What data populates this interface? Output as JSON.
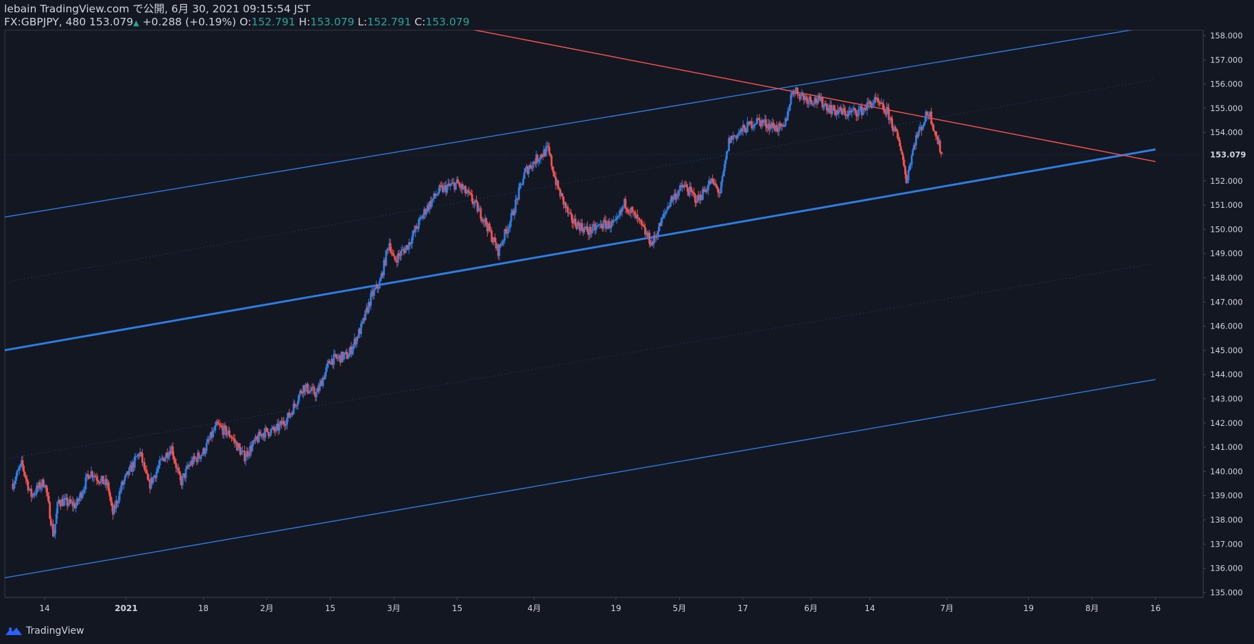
{
  "header": {
    "line1": "lebain TradingView.com で公開, 6月 30, 2021 09:15:54 JST",
    "symbol": "FX:GBPJPY, 480",
    "last": "153.079",
    "up_arrow": "▲",
    "change": "+0.288 (+0.19%)",
    "o_label": "O:",
    "o_value": "152.791",
    "h_label": "H:",
    "h_value": "153.079",
    "l_label": "L:",
    "l_value": "152.791",
    "c_label": "C:",
    "c_value": "153.079"
  },
  "footer": {
    "brand": "TradingView",
    "logo_icon": "tradingview-logo-icon"
  },
  "colors": {
    "background": "#131722",
    "up": "#2f7de1",
    "down": "#ef5350",
    "channel": "#2f7de1",
    "trend": "#ef5350",
    "axis_text": "#d1d4dc",
    "price_label_bg": "#131722"
  },
  "chart_data": {
    "type": "candlestick",
    "symbol": "FX:GBPJPY",
    "interval": "480",
    "y_range": [
      134.9,
      158.3
    ],
    "y_ticks": [
      "135.000",
      "136.000",
      "137.000",
      "138.000",
      "139.000",
      "140.000",
      "141.000",
      "142.000",
      "143.000",
      "144.000",
      "145.000",
      "146.000",
      "147.000",
      "148.000",
      "149.000",
      "150.000",
      "151.000",
      "152.000",
      "153.000",
      "154.000",
      "155.000",
      "156.000",
      "157.000",
      "158.000"
    ],
    "last_price_label": "153.079",
    "x_labels": [
      {
        "label": "14",
        "date": "2020-12-14"
      },
      {
        "label": "2021",
        "date": "2021-01-01"
      },
      {
        "label": "18",
        "date": "2021-01-18"
      },
      {
        "label": "2月",
        "date": "2021-02-01"
      },
      {
        "label": "15",
        "date": "2021-02-15"
      },
      {
        "label": "3月",
        "date": "2021-03-01"
      },
      {
        "label": "15",
        "date": "2021-03-15"
      },
      {
        "label": "4月",
        "date": "2021-04-01"
      },
      {
        "label": "19",
        "date": "2021-04-19"
      },
      {
        "label": "5月",
        "date": "2021-05-03"
      },
      {
        "label": "17",
        "date": "2021-05-17"
      },
      {
        "label": "6月",
        "date": "2021-06-01"
      },
      {
        "label": "14",
        "date": "2021-06-14"
      },
      {
        "label": "7月",
        "date": "2021-07-01"
      },
      {
        "label": "19",
        "date": "2021-07-19"
      },
      {
        "label": "8月",
        "date": "2021-08-02"
      },
      {
        "label": "16",
        "date": "2021-08-16"
      }
    ],
    "price_path": [
      [
        "2020-12-07",
        139.5
      ],
      [
        "2020-12-09",
        140.3
      ],
      [
        "2020-12-11",
        139.0
      ],
      [
        "2020-12-14",
        139.6
      ],
      [
        "2020-12-16",
        137.3
      ],
      [
        "2020-12-17",
        138.8
      ],
      [
        "2020-12-21",
        138.6
      ],
      [
        "2020-12-24",
        140.0
      ],
      [
        "2020-12-28",
        139.4
      ],
      [
        "2020-12-29",
        138.2
      ],
      [
        "2020-12-31",
        139.4
      ],
      [
        "2021-01-04",
        140.8
      ],
      [
        "2021-01-06",
        139.4
      ],
      [
        "2021-01-09",
        140.5
      ],
      [
        "2021-01-11",
        141.0
      ],
      [
        "2021-01-13",
        139.5
      ],
      [
        "2021-01-15",
        140.3
      ],
      [
        "2021-01-18",
        140.8
      ],
      [
        "2021-01-21",
        141.9
      ],
      [
        "2021-01-24",
        141.5
      ],
      [
        "2021-01-27",
        140.6
      ],
      [
        "2021-01-31",
        141.6
      ],
      [
        "2021-02-03",
        141.7
      ],
      [
        "2021-02-06",
        142.3
      ],
      [
        "2021-02-09",
        143.5
      ],
      [
        "2021-02-12",
        143.2
      ],
      [
        "2021-02-15",
        144.6
      ],
      [
        "2021-02-19",
        144.8
      ],
      [
        "2021-02-22",
        146.0
      ],
      [
        "2021-02-24",
        147.2
      ],
      [
        "2021-02-26",
        147.8
      ],
      [
        "2021-02-28",
        149.5
      ],
      [
        "2021-03-01",
        148.7
      ],
      [
        "2021-03-04",
        149.3
      ],
      [
        "2021-03-08",
        150.8
      ],
      [
        "2021-03-11",
        151.6
      ],
      [
        "2021-03-15",
        151.9
      ],
      [
        "2021-03-18",
        151.3
      ],
      [
        "2021-03-21",
        150.4
      ],
      [
        "2021-03-24",
        149.1
      ],
      [
        "2021-03-27",
        150.5
      ],
      [
        "2021-03-30",
        152.4
      ],
      [
        "2021-04-02",
        153.0
      ],
      [
        "2021-04-04",
        153.3
      ],
      [
        "2021-04-06",
        151.8
      ],
      [
        "2021-04-09",
        150.4
      ],
      [
        "2021-04-13",
        149.9
      ],
      [
        "2021-04-16",
        150.2
      ],
      [
        "2021-04-19",
        150.2
      ],
      [
        "2021-04-21",
        151.1
      ],
      [
        "2021-04-24",
        150.3
      ],
      [
        "2021-04-27",
        149.4
      ],
      [
        "2021-04-29",
        150.3
      ],
      [
        "2021-05-01",
        151.2
      ],
      [
        "2021-05-04",
        151.8
      ],
      [
        "2021-05-07",
        151.2
      ],
      [
        "2021-05-10",
        152.0
      ],
      [
        "2021-05-12",
        151.5
      ],
      [
        "2021-05-14",
        153.7
      ],
      [
        "2021-05-17",
        154.1
      ],
      [
        "2021-05-20",
        154.5
      ],
      [
        "2021-05-23",
        154.3
      ],
      [
        "2021-05-26",
        154.1
      ],
      [
        "2021-05-28",
        155.8
      ],
      [
        "2021-05-31",
        155.4
      ],
      [
        "2021-06-03",
        155.3
      ],
      [
        "2021-06-06",
        154.9
      ],
      [
        "2021-06-09",
        154.8
      ],
      [
        "2021-06-12",
        154.9
      ],
      [
        "2021-06-15",
        155.3
      ],
      [
        "2021-06-18",
        154.8
      ],
      [
        "2021-06-21",
        153.3
      ],
      [
        "2021-06-22",
        152.0
      ],
      [
        "2021-06-24",
        153.7
      ],
      [
        "2021-06-26",
        154.5
      ],
      [
        "2021-06-27",
        154.9
      ],
      [
        "2021-06-28",
        154.3
      ],
      [
        "2021-06-29",
        153.6
      ],
      [
        "2021-06-30",
        153.079
      ]
    ],
    "drawings": [
      {
        "name": "channel-upper-line",
        "color": "#2f7de1",
        "width": 1.4,
        "p1": [
          "2020-12-05",
          150.5
        ],
        "p2": [
          "2021-08-16",
          158.4
        ]
      },
      {
        "name": "channel-median-line",
        "color": "#2f7de1",
        "width": 3.0,
        "p1": [
          "2020-12-05",
          145.0
        ],
        "p2": [
          "2021-08-16",
          153.3
        ]
      },
      {
        "name": "channel-lower-line",
        "color": "#2f7de1",
        "width": 1.4,
        "p1": [
          "2020-12-05",
          135.6
        ],
        "p2": [
          "2021-08-16",
          143.8
        ]
      },
      {
        "name": "channel-quarter-upper-line",
        "color": "#2f7de1",
        "width": 0.6,
        "dash": "2,3",
        "opacity": 0.45,
        "p1": [
          "2020-12-05",
          147.8
        ],
        "p2": [
          "2021-08-16",
          156.2
        ]
      },
      {
        "name": "channel-quarter-lower-line",
        "color": "#2f7de1",
        "width": 0.6,
        "dash": "2,3",
        "opacity": 0.45,
        "p1": [
          "2020-12-05",
          140.5
        ],
        "p2": [
          "2021-08-16",
          148.6
        ]
      },
      {
        "name": "resistance-trend-line",
        "color": "#ef5350",
        "width": 1.5,
        "p1": [
          "2021-03-17",
          158.3
        ],
        "p2": [
          "2021-08-16",
          152.8
        ]
      }
    ],
    "grid": false
  }
}
